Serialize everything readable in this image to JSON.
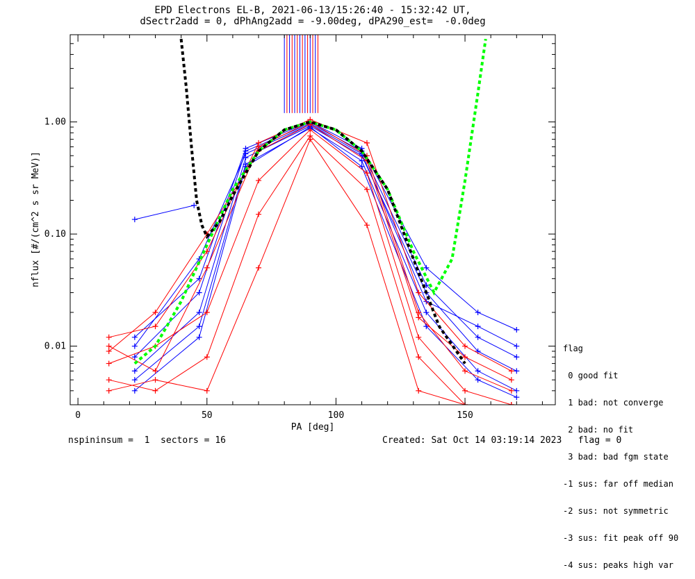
{
  "header": {
    "title_line1": "EPD Electrons EL-B, 2021-06-13/15:26:40 - 15:32:42 UT,",
    "title_line2": "dSectr2add = 0, dPhAng2add = -9.00deg, dPA290_est=  -0.0deg"
  },
  "footer": {
    "left": "nspininsum =  1  sectors = 16",
    "right": "Created: Sat Oct 14 03:19:14 2023   flag = 0"
  },
  "legend": {
    "title": "flag",
    "items": [
      " 0 good fit",
      " 1 bad: not converge",
      " 2 bad: no fit",
      " 3 bad: bad fgm state",
      "-1 sus: far off median",
      "-2 sus: not symmetric",
      "-3 sus: fit peak off 90",
      "-4 sus: peaks high var"
    ]
  },
  "colors": {
    "red": "#ff0000",
    "blue": "#0000ff",
    "green": "#00ff00",
    "black": "#000000"
  },
  "chart_data": {
    "type": "line",
    "xlabel": "PA [deg]",
    "ylabel": "nflux [#/(cm^2 s sr MeV)]",
    "xlim": [
      -3,
      185
    ],
    "ylim": [
      0.003,
      6
    ],
    "yscale": "log",
    "xticks": [
      0,
      50,
      100,
      150
    ],
    "xtick_labels": [
      "0",
      "50",
      "100",
      "150"
    ],
    "yticks": [
      0.01,
      0.1,
      1.0
    ],
    "ytick_labels": [
      "0.01",
      "0.10",
      "1.00"
    ],
    "series": [
      {
        "color": "#0000ff",
        "marker": "+",
        "x": [
          22,
          47,
          65,
          90,
          110,
          135,
          155,
          170
        ],
        "y": [
          0.008,
          0.03,
          0.55,
          0.97,
          0.55,
          0.035,
          0.012,
          0.008
        ]
      },
      {
        "color": "#0000ff",
        "marker": "+",
        "x": [
          22,
          47,
          65,
          90,
          110,
          135,
          155,
          170
        ],
        "y": [
          0.006,
          0.02,
          0.48,
          0.92,
          0.5,
          0.03,
          0.009,
          0.006
        ]
      },
      {
        "color": "#0000ff",
        "marker": "+",
        "x": [
          22,
          47,
          65,
          90,
          110,
          135,
          155,
          170
        ],
        "y": [
          0.012,
          0.04,
          0.58,
          1.0,
          0.58,
          0.05,
          0.02,
          0.014
        ]
      },
      {
        "color": "#0000ff",
        "marker": "+",
        "x": [
          22,
          47,
          65,
          90,
          110,
          135,
          155,
          170
        ],
        "y": [
          0.005,
          0.015,
          0.42,
          0.88,
          0.45,
          0.02,
          0.006,
          0.004
        ]
      },
      {
        "color": "#0000ff",
        "marker": "+",
        "x": [
          22,
          47,
          65,
          90,
          110,
          135,
          155,
          170
        ],
        "y": [
          0.01,
          0.06,
          0.52,
          0.95,
          0.52,
          0.025,
          0.015,
          0.01
        ]
      },
      {
        "color": "#0000ff",
        "marker": "+",
        "x": [
          22,
          47,
          65,
          90,
          110,
          135,
          155,
          170
        ],
        "y": [
          0.004,
          0.012,
          0.4,
          0.9,
          0.4,
          0.015,
          0.005,
          0.0035
        ]
      },
      {
        "color": "#0000ff",
        "marker": "+",
        "x": [
          22,
          45
        ],
        "y": [
          0.135,
          0.18
        ]
      },
      {
        "color": "#ff0000",
        "marker": "+",
        "x": [
          12,
          30,
          50,
          70,
          90,
          112,
          132,
          150,
          168
        ],
        "y": [
          0.01,
          0.006,
          0.05,
          0.6,
          1.0,
          0.5,
          0.02,
          0.006,
          0.004
        ]
      },
      {
        "color": "#ff0000",
        "marker": "+",
        "x": [
          12,
          30,
          50,
          70,
          90,
          112,
          132,
          150,
          168
        ],
        "y": [
          0.007,
          0.01,
          0.02,
          0.3,
          0.85,
          0.35,
          0.012,
          0.004,
          0.003
        ]
      },
      {
        "color": "#ff0000",
        "marker": "+",
        "x": [
          12,
          30,
          50,
          70,
          90,
          112,
          132,
          150,
          168
        ],
        "y": [
          0.005,
          0.004,
          0.008,
          0.15,
          0.75,
          0.25,
          0.008,
          0.003,
          0.003
        ]
      },
      {
        "color": "#ff0000",
        "marker": "+",
        "x": [
          12,
          30,
          50,
          70,
          90,
          112,
          132,
          150,
          168
        ],
        "y": [
          0.012,
          0.015,
          0.07,
          0.65,
          1.05,
          0.65,
          0.03,
          0.01,
          0.006
        ]
      },
      {
        "color": "#ff0000",
        "marker": "+",
        "x": [
          12,
          30,
          50,
          70,
          90,
          112,
          132,
          150,
          168
        ],
        "y": [
          0.004,
          0.005,
          0.004,
          0.05,
          0.7,
          0.12,
          0.004,
          0.003,
          0.003
        ]
      },
      {
        "color": "#ff0000",
        "marker": "+",
        "x": [
          12,
          30,
          50,
          70,
          90,
          112,
          132,
          150,
          168
        ],
        "y": [
          0.009,
          0.02,
          0.1,
          0.55,
          0.95,
          0.45,
          0.018,
          0.008,
          0.005
        ]
      }
    ],
    "fit_curves": [
      {
        "color": "#00ff00",
        "style": "dashed",
        "x": [
          22,
          30,
          40,
          50,
          60,
          70,
          80,
          90,
          100,
          110,
          120,
          130,
          138,
          145,
          150,
          155,
          158
        ],
        "y": [
          0.007,
          0.01,
          0.025,
          0.08,
          0.25,
          0.55,
          0.85,
          1.0,
          0.85,
          0.55,
          0.25,
          0.07,
          0.03,
          0.06,
          0.3,
          1.8,
          5.5
        ]
      },
      {
        "color": "#000000",
        "style": "dashed",
        "x": [
          40,
          42,
          44,
          46,
          48,
          50,
          55,
          60,
          70,
          80,
          90,
          100,
          110,
          120,
          130,
          140,
          150
        ],
        "y": [
          5.5,
          2.0,
          0.6,
          0.2,
          0.12,
          0.095,
          0.13,
          0.22,
          0.55,
          0.85,
          1.0,
          0.85,
          0.55,
          0.25,
          0.06,
          0.015,
          0.007
        ]
      }
    ],
    "spikes": {
      "x": [
        80,
        81,
        82,
        83,
        84,
        85,
        86,
        87,
        88,
        89,
        90,
        91,
        92,
        93
      ],
      "y_from": 1.2
    }
  }
}
